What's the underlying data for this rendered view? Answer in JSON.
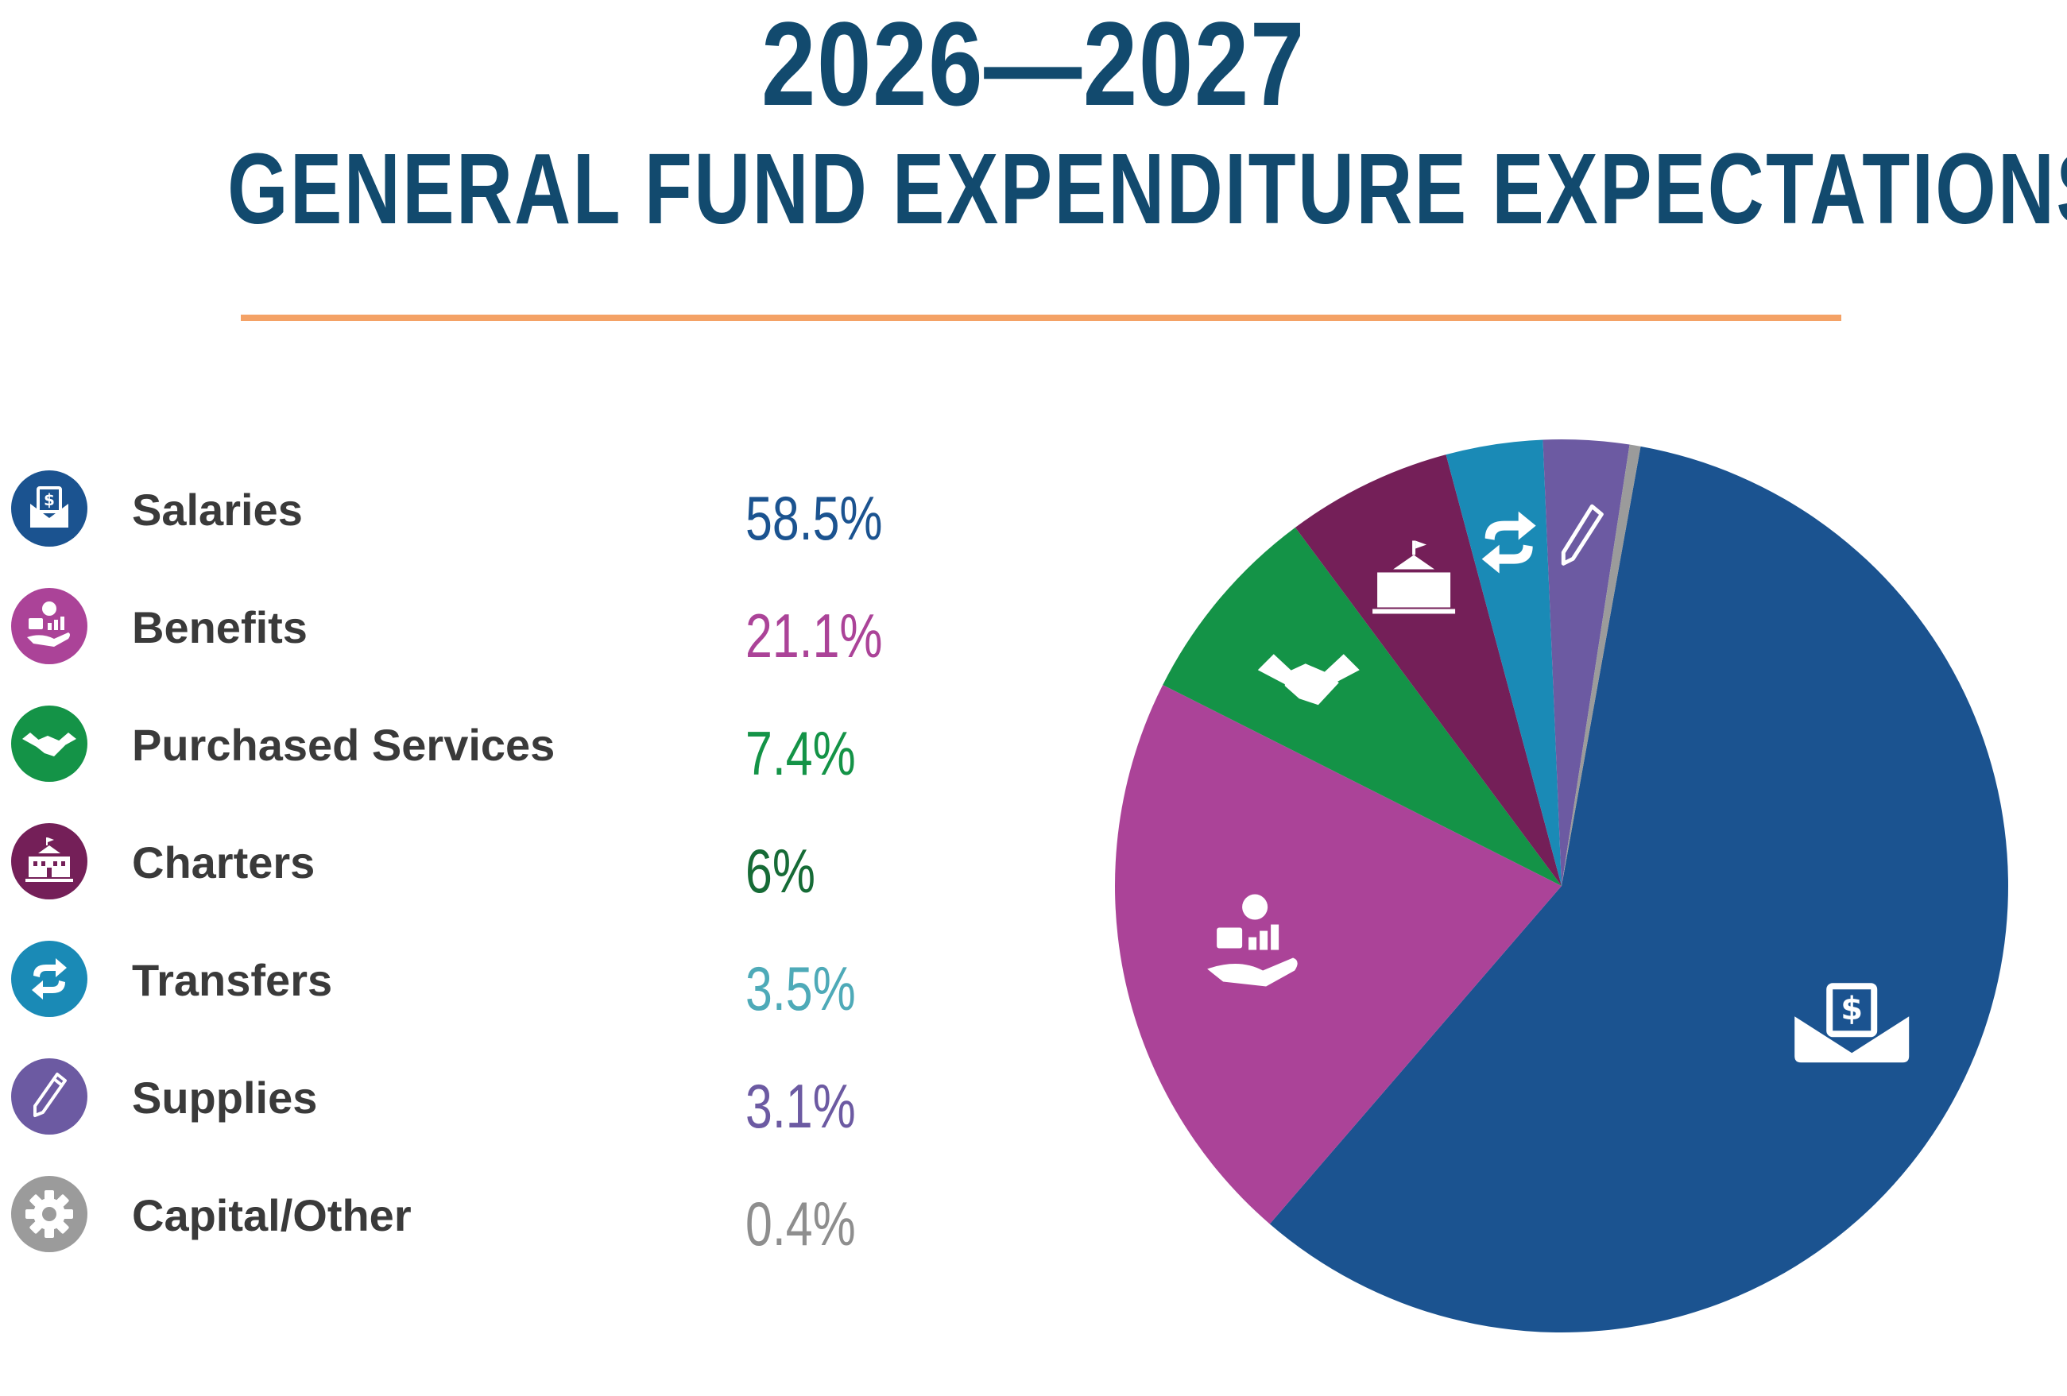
{
  "header": {
    "title": "2026—2027",
    "subtitle": "GENERAL FUND EXPENDITURE EXPECTATIONS"
  },
  "colors": {
    "title": "#124a6e",
    "rule": "#f4a266",
    "label": "#3a3a3a"
  },
  "chart_data": {
    "type": "pie",
    "unit": "%",
    "legend_placement": "left",
    "slices": [
      {
        "label": "Salaries",
        "value": 58.5,
        "display": "58.5%",
        "color": "#1b5390",
        "value_color": "#1b5390",
        "icon": "money-envelope-icon"
      },
      {
        "label": "Benefits",
        "value": 21.1,
        "display": "21.1%",
        "color": "#ab4398",
        "value_color": "#ab4398",
        "icon": "health-benefits-hand-icon"
      },
      {
        "label": "Purchased Services",
        "value": 7.4,
        "display": "7.4%",
        "color": "#149347",
        "value_color": "#149347",
        "icon": "handshake-icon"
      },
      {
        "label": "Charters",
        "value": 6,
        "display": "6%",
        "color": "#741f58",
        "value_color": "#166b36",
        "icon": "school-building-icon"
      },
      {
        "label": "Transfers",
        "value": 3.5,
        "display": "3.5%",
        "color": "#1a8ab6",
        "value_color": "#4eaab8",
        "icon": "transfer-arrows-icon"
      },
      {
        "label": "Supplies",
        "value": 3.1,
        "display": "3.1%",
        "color": "#6c5aa2",
        "value_color": "#6c5aa2",
        "icon": "pencil-icon"
      },
      {
        "label": "Capital/Other",
        "value": 0.4,
        "display": "0.4%",
        "color": "#9b9b9b",
        "value_color": "#8e8e8e",
        "icon": "gear-icon"
      }
    ]
  }
}
